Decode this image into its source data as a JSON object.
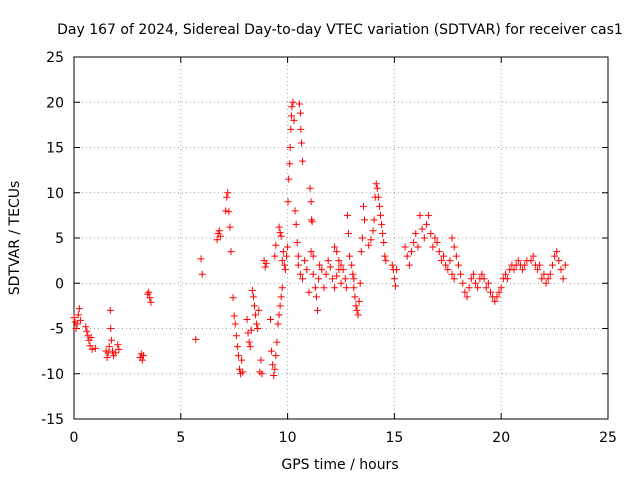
{
  "chart_data": {
    "type": "scatter",
    "title": "Day 167 of 2024, Sidereal Day-to-day VTEC variation (SDTVAR) for receiver cas1",
    "xlabel": "GPS time / hours",
    "ylabel": "SDTVAR / TECUs",
    "xlim": [
      0,
      25
    ],
    "ylim": [
      -15,
      25
    ],
    "xticks": [
      0,
      5,
      10,
      15,
      20,
      25
    ],
    "yticks": [
      -15,
      -10,
      -5,
      0,
      5,
      10,
      15,
      20,
      25
    ],
    "grid": true,
    "marker": "+",
    "series": [
      {
        "name": "SDTVAR",
        "color": "#ff0000",
        "segments": [
          [
            [
              0.0,
              -3.8
            ],
            [
              0.05,
              -4.3
            ],
            [
              0.1,
              -5.0
            ],
            [
              0.15,
              -4.5
            ],
            [
              0.2,
              -3.5
            ],
            [
              0.25,
              -2.8
            ],
            [
              0.3,
              -4.1
            ]
          ],
          [
            [
              0.55,
              -4.8
            ],
            [
              0.6,
              -5.3
            ],
            [
              0.65,
              -5.8
            ],
            [
              0.7,
              -6.3
            ],
            [
              0.75,
              -6.9
            ],
            [
              0.8,
              -6.0
            ],
            [
              0.85,
              -7.3
            ],
            [
              1.0,
              -7.2
            ]
          ],
          [
            [
              1.5,
              -7.5
            ],
            [
              1.55,
              -8.2
            ],
            [
              1.6,
              -7.7
            ],
            [
              1.65,
              -7.0
            ],
            [
              1.7,
              -3.0
            ],
            [
              1.72,
              -5.0
            ],
            [
              1.75,
              -6.3
            ],
            [
              1.8,
              -7.5
            ],
            [
              1.85,
              -8.0
            ],
            [
              1.95,
              -7.7
            ],
            [
              2.05,
              -6.8
            ],
            [
              2.1,
              -7.3
            ]
          ],
          [
            [
              3.1,
              -8.2
            ],
            [
              3.15,
              -7.8
            ],
            [
              3.2,
              -8.5
            ],
            [
              3.25,
              -8.0
            ]
          ],
          [
            [
              3.45,
              -1.2
            ],
            [
              3.5,
              -1.0
            ],
            [
              3.55,
              -1.6
            ],
            [
              3.6,
              -2.1
            ]
          ],
          [
            [
              5.7,
              -6.2
            ]
          ],
          [
            [
              5.95,
              2.7
            ],
            [
              6.0,
              1.0
            ]
          ],
          [
            [
              6.7,
              4.8
            ],
            [
              6.75,
              5.5
            ],
            [
              6.8,
              5.8
            ],
            [
              6.85,
              5.2
            ]
          ],
          [
            [
              7.1,
              8.0
            ],
            [
              7.15,
              9.5
            ],
            [
              7.2,
              10.0
            ],
            [
              7.25,
              7.9
            ],
            [
              7.3,
              6.2
            ],
            [
              7.35,
              3.5
            ]
          ],
          [
            [
              7.45,
              -1.6
            ],
            [
              7.5,
              -3.6
            ],
            [
              7.55,
              -4.5
            ],
            [
              7.6,
              -5.8
            ],
            [
              7.65,
              -7.0
            ],
            [
              7.7,
              -8.0
            ],
            [
              7.75,
              -9.5
            ],
            [
              7.8,
              -10.0
            ],
            [
              7.85,
              -8.5
            ],
            [
              7.9,
              -9.8
            ]
          ],
          [
            [
              8.1,
              -4.0
            ],
            [
              8.15,
              -5.5
            ],
            [
              8.2,
              -6.5
            ],
            [
              8.25,
              -7.0
            ],
            [
              8.3,
              -5.2
            ],
            [
              8.35,
              -0.8
            ],
            [
              8.4,
              -1.5
            ],
            [
              8.45,
              -2.5
            ],
            [
              8.5,
              -3.5
            ],
            [
              8.55,
              -4.5
            ],
            [
              8.6,
              -5.0
            ],
            [
              8.65,
              -3.0
            ]
          ],
          [
            [
              8.7,
              -9.8
            ],
            [
              8.75,
              -8.5
            ],
            [
              8.8,
              -10.0
            ]
          ],
          [
            [
              8.9,
              2.5
            ],
            [
              8.95,
              1.8
            ],
            [
              9.0,
              2.2
            ]
          ],
          [
            [
              9.2,
              -4.0
            ],
            [
              9.25,
              -7.5
            ],
            [
              9.3,
              -9.0
            ],
            [
              9.35,
              -10.2
            ],
            [
              9.4,
              -9.5
            ],
            [
              9.45,
              -8.0
            ],
            [
              9.5,
              -6.5
            ],
            [
              9.55,
              -4.5
            ],
            [
              9.6,
              -3.5
            ],
            [
              9.65,
              -2.5
            ],
            [
              9.7,
              -1.5
            ],
            [
              9.75,
              -0.5
            ],
            [
              9.4,
              3.0
            ],
            [
              9.45,
              4.2
            ]
          ],
          [
            [
              9.6,
              6.2
            ],
            [
              9.65,
              5.6
            ],
            [
              9.7,
              5.2
            ]
          ],
          [
            [
              9.75,
              2.5
            ],
            [
              9.8,
              3.5
            ],
            [
              9.85,
              2.0
            ],
            [
              9.9,
              1.5
            ],
            [
              9.95,
              3.0
            ],
            [
              10.0,
              4.0
            ],
            [
              10.02,
              9.0
            ],
            [
              10.05,
              11.5
            ],
            [
              10.1,
              13.2
            ],
            [
              10.12,
              15.0
            ],
            [
              10.15,
              17.0
            ],
            [
              10.18,
              18.5
            ],
            [
              10.2,
              19.5
            ],
            [
              10.25,
              20.0
            ],
            [
              10.3,
              18.0
            ],
            [
              10.35,
              8.0
            ],
            [
              10.4,
              6.5
            ],
            [
              10.45,
              4.5
            ],
            [
              10.5,
              3.0
            ],
            [
              10.55,
              19.8
            ],
            [
              10.6,
              18.8
            ],
            [
              10.62,
              17.0
            ],
            [
              10.65,
              15.5
            ],
            [
              10.7,
              13.5
            ]
          ],
          [
            [
              10.5,
              2.0
            ],
            [
              10.6,
              1.0
            ],
            [
              10.7,
              0.5
            ],
            [
              10.8,
              2.5
            ],
            [
              10.9,
              1.5
            ],
            [
              11.0,
              -1.0
            ],
            [
              11.1,
              3.5
            ],
            [
              11.2,
              1.0
            ],
            [
              11.3,
              -0.5
            ],
            [
              11.35,
              -1.5
            ],
            [
              11.4,
              -3.0
            ],
            [
              11.45,
              0.5
            ],
            [
              11.5,
              2.0
            ],
            [
              11.6,
              1.5
            ],
            [
              11.7,
              -0.5
            ],
            [
              11.8,
              1.0
            ],
            [
              11.9,
              2.5
            ],
            [
              12.0,
              1.8
            ],
            [
              12.1,
              0.5
            ],
            [
              12.2,
              -0.5
            ],
            [
              12.3,
              0.8
            ],
            [
              12.4,
              1.5
            ],
            [
              12.5,
              0.0
            ]
          ],
          [
            [
              11.05,
              10.5
            ],
            [
              11.1,
              9.0
            ],
            [
              11.12,
              7.0
            ],
            [
              11.15,
              6.8
            ],
            [
              11.2,
              3.0
            ]
          ],
          [
            [
              12.2,
              4.0
            ],
            [
              12.3,
              3.5
            ],
            [
              12.4,
              2.5
            ],
            [
              12.5,
              2.0
            ],
            [
              12.6,
              1.5
            ],
            [
              12.7,
              0.5
            ],
            [
              12.75,
              -0.5
            ]
          ],
          [
            [
              12.8,
              7.5
            ],
            [
              12.85,
              5.5
            ],
            [
              12.9,
              3.0
            ],
            [
              13.0,
              2.0
            ],
            [
              13.05,
              1.0
            ],
            [
              13.1,
              0.5
            ]
          ],
          [
            [
              13.1,
              -0.5
            ],
            [
              13.15,
              -1.5
            ],
            [
              13.2,
              -2.5
            ],
            [
              13.25,
              -3.0
            ],
            [
              13.3,
              -3.5
            ],
            [
              13.35,
              -2.0
            ],
            [
              13.4,
              0.0
            ],
            [
              13.45,
              3.5
            ],
            [
              13.5,
              5.0
            ],
            [
              13.55,
              8.5
            ],
            [
              13.6,
              7.0
            ]
          ],
          [
            [
              13.8,
              4.2
            ],
            [
              13.9,
              4.8
            ],
            [
              14.0,
              5.8
            ],
            [
              14.05,
              7.0
            ],
            [
              14.1,
              9.5
            ],
            [
              14.15,
              11.0
            ],
            [
              14.2,
              10.5
            ],
            [
              14.25,
              9.5
            ],
            [
              14.3,
              8.5
            ],
            [
              14.35,
              7.5
            ],
            [
              14.4,
              6.5
            ],
            [
              14.45,
              5.5
            ],
            [
              14.5,
              4.5
            ],
            [
              14.55,
              3.0
            ],
            [
              14.6,
              2.5
            ]
          ],
          [
            [
              14.9,
              2.0
            ],
            [
              14.95,
              1.5
            ],
            [
              15.0,
              0.5
            ],
            [
              15.05,
              -0.3
            ],
            [
              15.1,
              1.5
            ]
          ],
          [
            [
              15.5,
              4.0
            ],
            [
              15.6,
              3.0
            ],
            [
              15.7,
              2.0
            ],
            [
              15.8,
              3.5
            ],
            [
              15.9,
              4.5
            ],
            [
              16.0,
              5.5
            ],
            [
              16.1,
              4.0
            ],
            [
              16.2,
              7.5
            ],
            [
              16.3,
              6.0
            ],
            [
              16.4,
              5.0
            ],
            [
              16.5,
              6.5
            ],
            [
              16.6,
              7.5
            ],
            [
              16.7,
              5.5
            ],
            [
              16.8,
              4.0
            ],
            [
              16.9,
              5.0
            ],
            [
              17.0,
              4.5
            ],
            [
              17.1,
              3.5
            ],
            [
              17.2,
              2.5
            ],
            [
              17.3,
              3.0
            ],
            [
              17.4,
              2.0
            ],
            [
              17.5,
              1.5
            ],
            [
              17.6,
              2.5
            ],
            [
              17.7,
              1.0
            ],
            [
              17.8,
              0.5
            ]
          ],
          [
            [
              17.7,
              5.0
            ],
            [
              17.8,
              4.0
            ],
            [
              17.9,
              3.0
            ],
            [
              18.0,
              2.0
            ],
            [
              18.1,
              1.0
            ],
            [
              18.2,
              0.0
            ],
            [
              18.3,
              -1.0
            ],
            [
              18.4,
              -1.5
            ],
            [
              18.5,
              -0.5
            ],
            [
              18.6,
              0.5
            ],
            [
              18.7,
              1.0
            ],
            [
              18.8,
              0.0
            ],
            [
              18.9,
              -0.5
            ],
            [
              19.0,
              0.5
            ],
            [
              19.1,
              1.0
            ],
            [
              19.2,
              0.5
            ],
            [
              19.3,
              -0.5
            ],
            [
              19.4,
              0.0
            ],
            [
              19.5,
              -1.0
            ],
            [
              19.6,
              -1.5
            ],
            [
              19.7,
              -2.0
            ],
            [
              19.8,
              -1.5
            ],
            [
              19.9,
              -1.0
            ],
            [
              20.0,
              -0.5
            ],
            [
              20.1,
              0.5
            ],
            [
              20.2,
              1.0
            ],
            [
              20.3,
              0.5
            ],
            [
              20.4,
              1.5
            ],
            [
              20.5,
              2.0
            ],
            [
              20.6,
              1.5
            ],
            [
              20.7,
              2.0
            ],
            [
              20.8,
              2.5
            ],
            [
              20.9,
              2.0
            ],
            [
              21.0,
              1.5
            ],
            [
              21.1,
              2.0
            ],
            [
              21.2,
              2.5
            ]
          ],
          [
            [
              21.4,
              2.5
            ],
            [
              21.5,
              3.0
            ],
            [
              21.6,
              2.0
            ],
            [
              21.7,
              1.5
            ],
            [
              21.8,
              2.0
            ],
            [
              21.9,
              0.5
            ],
            [
              22.0,
              1.0
            ],
            [
              22.1,
              0.0
            ],
            [
              22.2,
              0.5
            ],
            [
              22.3,
              1.0
            ],
            [
              22.4,
              2.0
            ],
            [
              22.5,
              3.0
            ],
            [
              22.6,
              3.5
            ],
            [
              22.7,
              2.5
            ],
            [
              22.8,
              1.5
            ],
            [
              22.9,
              0.5
            ],
            [
              23.0,
              2.0
            ]
          ]
        ]
      }
    ]
  }
}
